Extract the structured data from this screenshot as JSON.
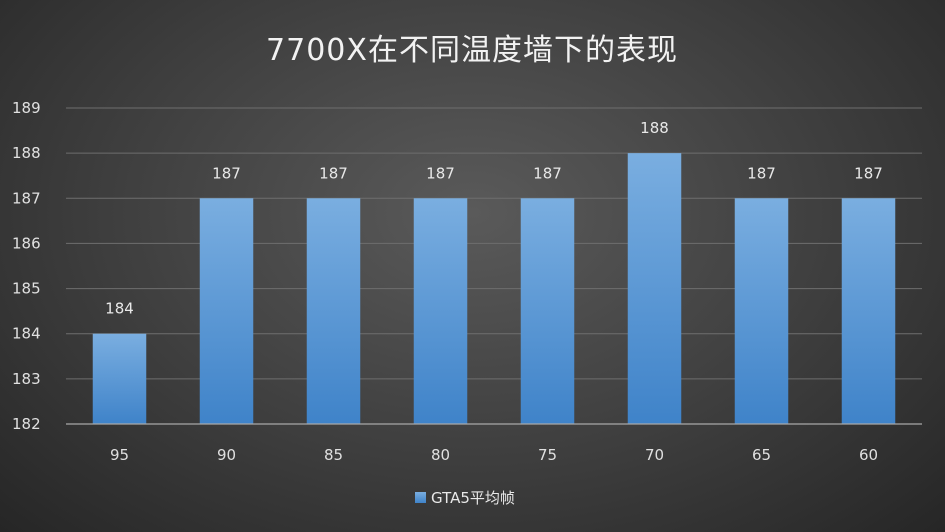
{
  "chart_data": {
    "type": "bar",
    "title": "7700X在不同温度墙下的表现",
    "categories": [
      "95",
      "90",
      "85",
      "80",
      "75",
      "70",
      "65",
      "60"
    ],
    "series": [
      {
        "name": "GTA5平均帧",
        "values": [
          184,
          187,
          187,
          187,
          187,
          188,
          187,
          187
        ]
      }
    ],
    "ylim": [
      182,
      189
    ],
    "yticks": [
      182,
      183,
      184,
      185,
      186,
      187,
      188,
      189
    ],
    "grid": true,
    "legend": "bottom",
    "colors": {
      "bar_top": "#7aaee0",
      "bar_bottom": "#3f83c9"
    }
  }
}
